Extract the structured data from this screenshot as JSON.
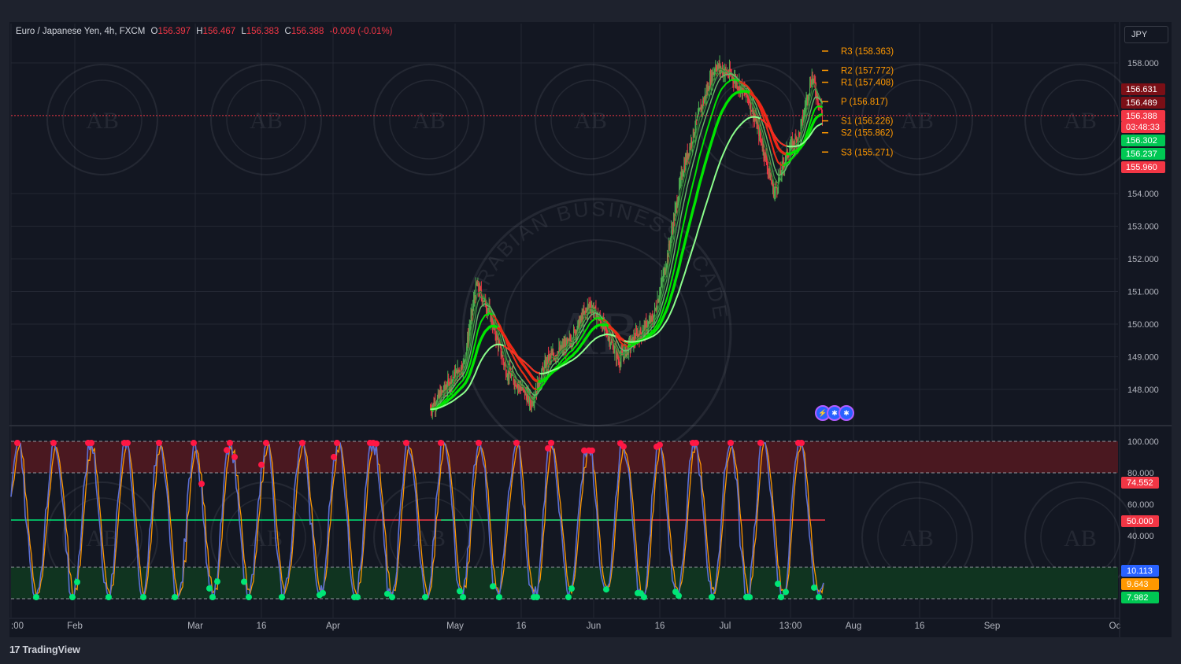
{
  "header": {
    "symbol": "Euro / Japanese Yen, 4h, FXCM",
    "open_label": "O",
    "open": "156.397",
    "high_label": "H",
    "high": "156.467",
    "low_label": "L",
    "low": "156.383",
    "close_label": "C",
    "close": "156.388",
    "change": "-0.009 (-0.01%)"
  },
  "currency_button": "JPY",
  "footer": {
    "brand": "TradingView",
    "logo_glyph": "17"
  },
  "watermark": {
    "text": "ARABIAN BUSINESS ACADEMY",
    "monogram": "AB"
  },
  "colors": {
    "background": "#131722",
    "frame": "#1e222d",
    "grid": "#232733",
    "up": "#4caf50",
    "down": "#f23645",
    "ma_bright": "#00e600",
    "ma_light": "#8cff8c",
    "pivot": "#ff9800",
    "stoch_k": "#5b6fd6",
    "stoch_d": "#ff9800",
    "overbought_zone": "#4a1820",
    "oversold_zone": "#103420"
  },
  "chart_data": [
    {
      "type": "candlestick",
      "title": "Euro / Japanese Yen, 4h, FXCM",
      "x_ticks": [
        ":00",
        "Feb",
        "Mar",
        "16",
        "Apr",
        "May",
        "16",
        "Jun",
        "16",
        "Jul",
        "13:00",
        "Aug",
        "16",
        "Sep",
        "Oc"
      ],
      "y_ticks": [
        "158.000",
        "154.000",
        "153.000",
        "152.000",
        "151.000",
        "150.000",
        "149.000",
        "148.000"
      ],
      "y_range": [
        147.0,
        159.4
      ],
      "price_series_estimated": [
        {
          "date": "2024-04-20",
          "close": 147.4
        },
        {
          "date": "2024-04-28",
          "close": 148.8
        },
        {
          "date": "2024-05-01",
          "close": 151.2
        },
        {
          "date": "2024-05-04",
          "close": 150.4
        },
        {
          "date": "2024-05-08",
          "close": 148.6
        },
        {
          "date": "2024-05-12",
          "close": 148.0
        },
        {
          "date": "2024-05-14",
          "close": 147.6
        },
        {
          "date": "2024-05-18",
          "close": 148.9
        },
        {
          "date": "2024-05-23",
          "close": 149.4
        },
        {
          "date": "2024-05-28",
          "close": 150.6
        },
        {
          "date": "2024-06-01",
          "close": 149.8
        },
        {
          "date": "2024-06-04",
          "close": 148.9
        },
        {
          "date": "2024-06-08",
          "close": 149.6
        },
        {
          "date": "2024-06-12",
          "close": 150.1
        },
        {
          "date": "2024-06-15",
          "close": 151.7
        },
        {
          "date": "2024-06-19",
          "close": 154.6
        },
        {
          "date": "2024-06-23",
          "close": 156.4
        },
        {
          "date": "2024-06-27",
          "close": 157.9
        },
        {
          "date": "2024-07-01",
          "close": 157.6
        },
        {
          "date": "2024-07-05",
          "close": 156.9
        },
        {
          "date": "2024-07-08",
          "close": 155.6
        },
        {
          "date": "2024-07-11",
          "close": 154.0
        },
        {
          "date": "2024-07-14",
          "close": 155.2
        },
        {
          "date": "2024-07-17",
          "close": 155.8
        },
        {
          "date": "2024-07-20",
          "close": 157.6
        },
        {
          "date": "2024-07-22",
          "close": 156.39
        }
      ],
      "pivot_levels": [
        {
          "label": "R3 (158.363)",
          "value": 158.363
        },
        {
          "label": "R2 (157.772)",
          "value": 157.772
        },
        {
          "label": "R1 (157.408)",
          "value": 157.408
        },
        {
          "label": "P (156.817)",
          "value": 156.817
        },
        {
          "label": "S1 (156.226)",
          "value": 156.226
        },
        {
          "label": "S2 (155.862)",
          "value": 155.862
        },
        {
          "label": "S3 (155.271)",
          "value": 155.271
        }
      ],
      "price_scale_labels": [
        {
          "text": "156.631",
          "color": "#7b0f16"
        },
        {
          "text": "156.489",
          "color": "#7b0f16"
        },
        {
          "text": "156.388",
          "color": "#f23645"
        },
        {
          "text": "03:48:33",
          "color": "#f23645"
        },
        {
          "text": "156.302",
          "color": "#00c853"
        },
        {
          "text": "156.237",
          "color": "#00c853"
        },
        {
          "text": "155.960",
          "color": "#f23645"
        }
      ],
      "current_price_line": 156.388
    },
    {
      "type": "line",
      "name": "stochastic",
      "y_ticks": [
        "100.000",
        "80.000",
        "60.000",
        "40.000"
      ],
      "y_range": [
        -2,
        103
      ],
      "levels": [
        100,
        80,
        50,
        20,
        0
      ],
      "scale_labels": [
        {
          "text": "74.552",
          "color": "#f23645"
        },
        {
          "text": "50.000",
          "color": "#f23645"
        },
        {
          "text": "10.113",
          "color": "#2962ff"
        },
        {
          "text": "9.643",
          "color": "#ff9800"
        },
        {
          "text": "7.982",
          "color": "#00c853"
        }
      ]
    }
  ]
}
